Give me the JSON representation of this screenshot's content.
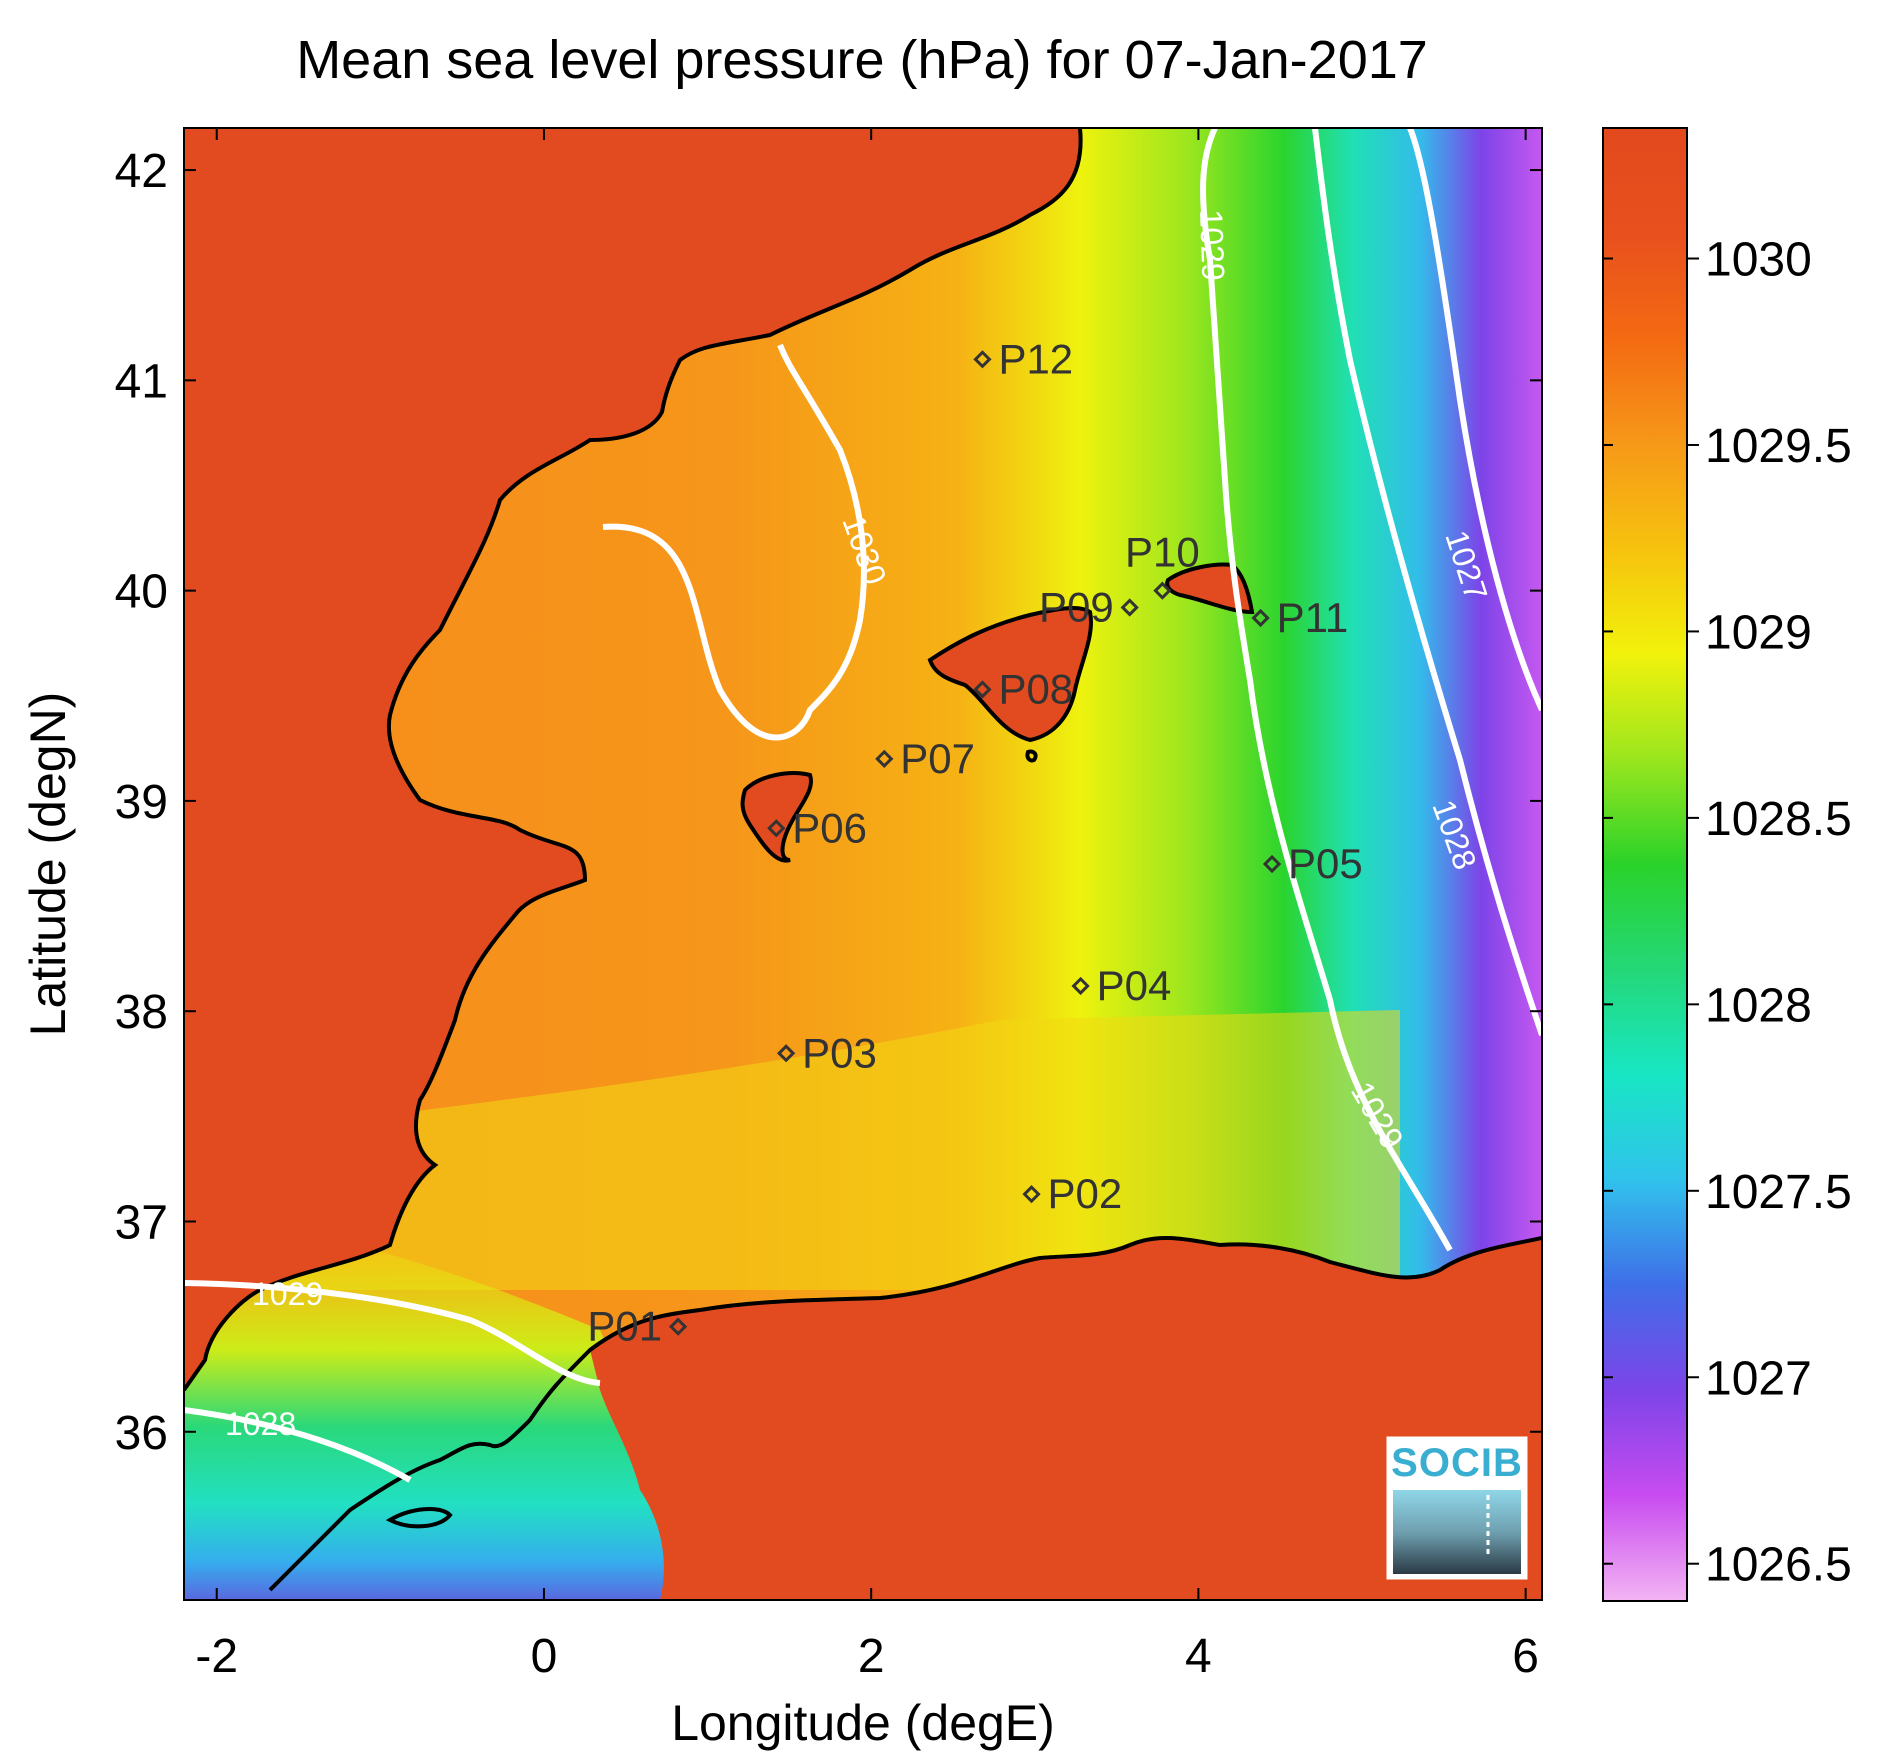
{
  "title": "Mean sea level pressure (hPa) for 07-Jan-2017",
  "x_axis": {
    "label": "Longitude (degE)",
    "ticks": [
      {
        "value": -2,
        "label": "-2"
      },
      {
        "value": 0,
        "label": "0"
      },
      {
        "value": 2,
        "label": "2"
      },
      {
        "value": 4,
        "label": "4"
      },
      {
        "value": 6,
        "label": "6"
      }
    ],
    "range": [
      -2.2,
      6.1
    ]
  },
  "y_axis": {
    "label": "Latitude (degN)",
    "ticks": [
      {
        "value": 36,
        "label": "36"
      },
      {
        "value": 37,
        "label": "37"
      },
      {
        "value": 38,
        "label": "38"
      },
      {
        "value": 39,
        "label": "39"
      },
      {
        "value": 40,
        "label": "40"
      },
      {
        "value": 41,
        "label": "41"
      },
      {
        "value": 42,
        "label": "42"
      }
    ],
    "range": [
      35.2,
      42.2
    ]
  },
  "colorbar": {
    "range": [
      1026.4,
      1030.35
    ],
    "ticks": [
      {
        "value": 1026.5,
        "label": "1026.5"
      },
      {
        "value": 1027,
        "label": "1027"
      },
      {
        "value": 1027.5,
        "label": "1027.5"
      },
      {
        "value": 1028,
        "label": "1028"
      },
      {
        "value": 1028.5,
        "label": "1028.5"
      },
      {
        "value": 1029,
        "label": "1029"
      },
      {
        "value": 1029.5,
        "label": "1029.5"
      },
      {
        "value": 1030,
        "label": "1030"
      }
    ],
    "colors": [
      "#f3b4f3",
      "#c84cf0",
      "#7d44e8",
      "#3f6ee8",
      "#31c2ec",
      "#18e6c4",
      "#24d878",
      "#2ad22a",
      "#9ae61e",
      "#f2f20c",
      "#f6c20e",
      "#f69818",
      "#f46a12",
      "#e8501e",
      "#e24a1e"
    ]
  },
  "stations": [
    {
      "id": "P01",
      "label": "P01",
      "lon": 0.82,
      "lat": 36.5
    },
    {
      "id": "P02",
      "label": "P02",
      "lon": 2.98,
      "lat": 37.13
    },
    {
      "id": "P03",
      "label": "P03",
      "lon": 1.48,
      "lat": 37.8
    },
    {
      "id": "P04",
      "label": "P04",
      "lon": 3.28,
      "lat": 38.12
    },
    {
      "id": "P05",
      "label": "P05",
      "lon": 4.45,
      "lat": 38.7
    },
    {
      "id": "P06",
      "label": "P06",
      "lon": 1.42,
      "lat": 38.87
    },
    {
      "id": "P07",
      "label": "P07",
      "lon": 2.08,
      "lat": 39.2
    },
    {
      "id": "P08",
      "label": "P08",
      "lon": 2.68,
      "lat": 39.53
    },
    {
      "id": "P09",
      "label": "P09",
      "lon": 3.58,
      "lat": 39.92
    },
    {
      "id": "P10",
      "label": "P10",
      "lon": 3.78,
      "lat": 40.0
    },
    {
      "id": "P11",
      "label": "P11",
      "lon": 4.38,
      "lat": 39.87
    },
    {
      "id": "P12",
      "label": "P12",
      "lon": 2.68,
      "lat": 41.1
    }
  ],
  "contours": [
    {
      "level": "1030",
      "label": "1030"
    },
    {
      "level": "1029",
      "label": "1029"
    },
    {
      "level": "1028",
      "label": "1028"
    },
    {
      "level": "1027",
      "label": "1027"
    }
  ],
  "logo": {
    "text": "SOCIB"
  },
  "colors": {
    "land": "#e24b1f",
    "coastline": "#000000",
    "contour": "#ffffff",
    "station_marker": "#333333"
  }
}
